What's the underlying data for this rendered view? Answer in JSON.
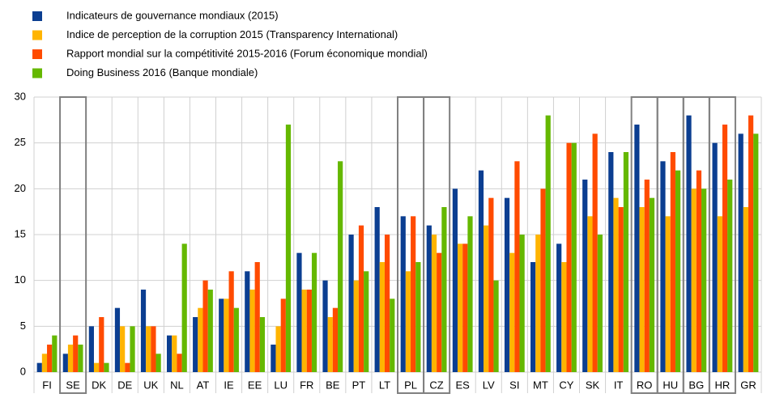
{
  "chart_data": {
    "type": "bar",
    "categories": [
      "FI",
      "SE",
      "DK",
      "DE",
      "UK",
      "NL",
      "AT",
      "IE",
      "EE",
      "LU",
      "FR",
      "BE",
      "PT",
      "LT",
      "PL",
      "CZ",
      "ES",
      "LV",
      "SI",
      "MT",
      "CY",
      "SK",
      "IT",
      "RO",
      "HU",
      "BG",
      "HR",
      "GR"
    ],
    "series": [
      {
        "name": "Indicateurs de gouvernance mondiaux (2015)",
        "color": "#0b3e91",
        "values": [
          1,
          2,
          5,
          7,
          9,
          4,
          6,
          8,
          11,
          3,
          13,
          10,
          15,
          18,
          17,
          16,
          20,
          22,
          19,
          12,
          14,
          21,
          24,
          27,
          23,
          28,
          25,
          26
        ]
      },
      {
        "name": "Indice de perception de la corruption 2015 (Transparency International)",
        "color": "#ffb400",
        "values": [
          2,
          3,
          1,
          5,
          5,
          4,
          7,
          8,
          9,
          5,
          9,
          6,
          10,
          12,
          11,
          15,
          14,
          16,
          13,
          15,
          12,
          17,
          19,
          18,
          17,
          20,
          17,
          18
        ]
      },
      {
        "name": "Rapport mondial sur la compétitivité 2015-2016 (Forum économique mondial)",
        "color": "#ff4b00",
        "values": [
          3,
          4,
          6,
          1,
          5,
          2,
          10,
          11,
          12,
          8,
          9,
          7,
          16,
          15,
          17,
          13,
          14,
          19,
          23,
          20,
          25,
          26,
          18,
          21,
          24,
          22,
          27,
          28
        ]
      },
      {
        "name": "Doing Business 2016 (Banque mondiale)",
        "color": "#65b800",
        "values": [
          4,
          3,
          1,
          5,
          2,
          14,
          9,
          7,
          6,
          27,
          13,
          23,
          11,
          8,
          12,
          18,
          17,
          10,
          15,
          28,
          25,
          15,
          24,
          19,
          22,
          20,
          21,
          26
        ]
      }
    ],
    "ylim": [
      0,
      30
    ],
    "yticks": [
      0,
      5,
      10,
      15,
      20,
      25,
      30
    ],
    "grid": true,
    "highlighted_categories": [
      1,
      14,
      15,
      23,
      24,
      25,
      26
    ]
  }
}
